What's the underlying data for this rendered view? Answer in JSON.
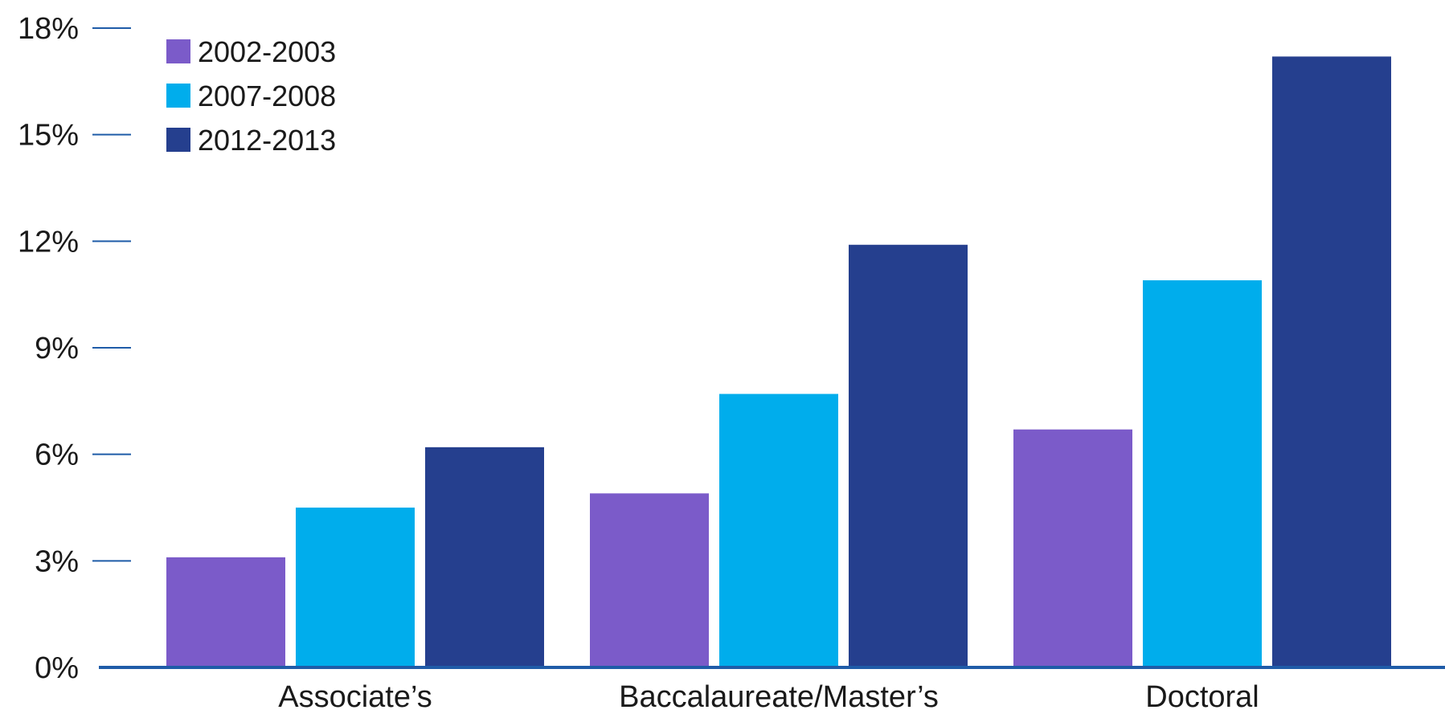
{
  "chart_data": {
    "type": "bar",
    "title": "",
    "xlabel": "",
    "ylabel": "",
    "ylim": [
      0,
      18
    ],
    "yticks": [
      0,
      3,
      6,
      9,
      12,
      15,
      18
    ],
    "ytick_labels": [
      "0%",
      "3%",
      "6%",
      "9%",
      "12%",
      "15%",
      "18%"
    ],
    "categories": [
      "Associate’s",
      "Baccalaureate/Master’s",
      "Doctoral"
    ],
    "series": [
      {
        "name": "2002-2003",
        "color": "#7b5bc9",
        "values": [
          3.1,
          4.9,
          6.7
        ]
      },
      {
        "name": "2007-2008",
        "color": "#00adec",
        "values": [
          4.5,
          7.7,
          10.9
        ]
      },
      {
        "name": "2012-2013",
        "color": "#253f8e",
        "values": [
          6.2,
          11.9,
          17.2
        ]
      }
    ],
    "legend_position": "top-left",
    "grid": false,
    "axis_color": "#1f5ca8"
  }
}
